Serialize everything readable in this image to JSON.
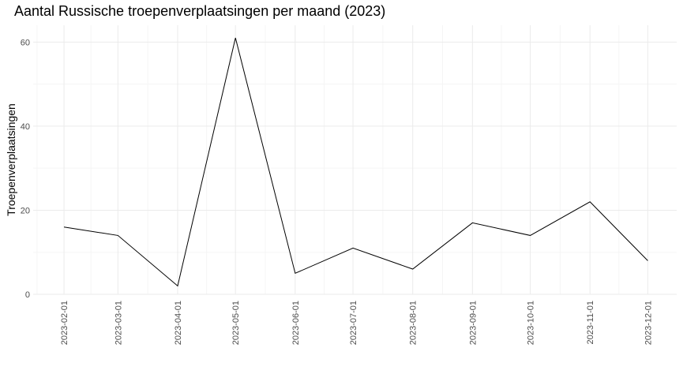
{
  "chart_data": {
    "type": "line",
    "title": "Aantal Russische troepenverplaatsingen per maand (2023)",
    "xlabel": "",
    "ylabel": "Troepenverplaatsingen",
    "x": [
      "2023-02-01",
      "2023-03-01",
      "2023-04-01",
      "2023-05-01",
      "2023-06-01",
      "2023-07-01",
      "2023-08-01",
      "2023-09-01",
      "2023-10-01",
      "2023-11-01",
      "2023-12-01"
    ],
    "series": [
      {
        "values": [
          16,
          14,
          2,
          61,
          5,
          11,
          6,
          17,
          14,
          22,
          8
        ]
      }
    ],
    "xlim": [
      "2023-01-16",
      "2023-12-16"
    ],
    "ylim": [
      0,
      64
    ],
    "yticks": [
      0,
      20,
      40,
      60
    ],
    "grid": true,
    "legend": "none",
    "colors": {
      "line": "#000000",
      "grid_major": "#ebebeb",
      "grid_minor": "#f5f5f5",
      "tick_text": "#4d4d4d"
    }
  }
}
